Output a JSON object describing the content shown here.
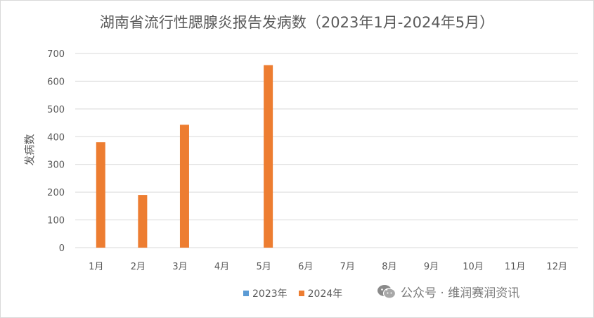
{
  "chart_data": {
    "type": "bar",
    "title": "湖南省流行性腮腺炎报告发病数（2023年1月-2024年5月）",
    "ylabel": "发病数",
    "xlabel": "",
    "categories": [
      "1月",
      "2月",
      "3月",
      "4月",
      "5月",
      "6月",
      "7月",
      "8月",
      "9月",
      "10月",
      "11月",
      "12月"
    ],
    "series": [
      {
        "name": "2023年",
        "color": "#5b9bd5",
        "values": [
          null,
          null,
          null,
          null,
          null,
          null,
          null,
          null,
          null,
          null,
          null,
          null
        ]
      },
      {
        "name": "2024年",
        "color": "#ed7d31",
        "values": [
          380,
          190,
          443,
          null,
          658,
          null,
          null,
          null,
          null,
          null,
          null,
          null
        ]
      }
    ],
    "ylim": [
      0,
      700
    ],
    "yticks": [
      0,
      100,
      200,
      300,
      400,
      500,
      600,
      700
    ],
    "grid": true,
    "legend_position": "bottom"
  },
  "watermark": {
    "text": "公众号 · 维润赛润资讯",
    "icon": "wechat-icon"
  }
}
